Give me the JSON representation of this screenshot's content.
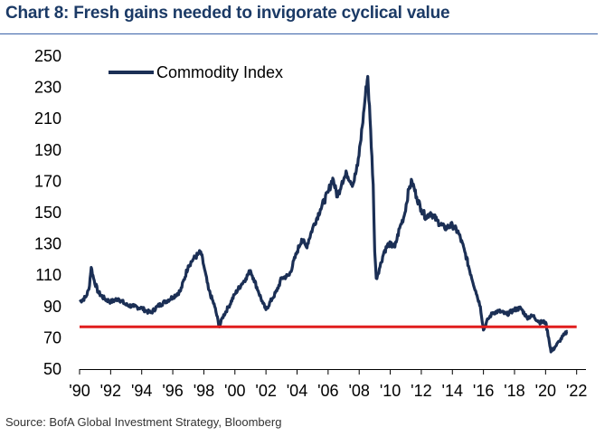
{
  "title": "Chart 8: Fresh gains needed to invigorate cyclical value",
  "source": "Source: BofA Global Investment Strategy, Bloomberg",
  "colors": {
    "title": "#1b3a66",
    "rule": "#3a63a8",
    "series": "#1b2f55",
    "reference": "#e01d1d"
  },
  "chart_data": {
    "type": "line",
    "title": "Chart 8: Fresh gains needed to invigorate cyclical value",
    "xlabel": "",
    "ylabel": "",
    "xlim": [
      1990,
      2022.6
    ],
    "ylim": [
      50,
      250
    ],
    "y_ticks": [
      50,
      70,
      90,
      110,
      130,
      150,
      170,
      190,
      210,
      230,
      250
    ],
    "x_tick_values": [
      1990,
      1992,
      1994,
      1996,
      1998,
      2000,
      2002,
      2004,
      2006,
      2008,
      2010,
      2012,
      2014,
      2016,
      2018,
      2020,
      2022
    ],
    "x_tick_labels": [
      "'90",
      "'92",
      "'94",
      "'96",
      "'98",
      "'00",
      "'02",
      "'04",
      "'06",
      "'08",
      "'10",
      "'12",
      "'14",
      "'16",
      "'18",
      "'20",
      "'22"
    ],
    "legend": [
      "Commodity Index"
    ],
    "legend_position": "top-left",
    "reference_line": {
      "y": 77,
      "xrange": [
        1990,
        2022
      ]
    },
    "series": [
      {
        "name": "Commodity Index",
        "points": [
          [
            1990.0,
            93
          ],
          [
            1990.4,
            96
          ],
          [
            1990.6,
            101
          ],
          [
            1990.75,
            115
          ],
          [
            1990.9,
            108
          ],
          [
            1991.2,
            99
          ],
          [
            1991.6,
            95
          ],
          [
            1992.0,
            93
          ],
          [
            1992.5,
            95
          ],
          [
            1993.0,
            91
          ],
          [
            1993.5,
            90
          ],
          [
            1994.0,
            89
          ],
          [
            1994.3,
            87
          ],
          [
            1994.6,
            86
          ],
          [
            1995.0,
            90
          ],
          [
            1995.5,
            93
          ],
          [
            1996.0,
            96
          ],
          [
            1996.5,
            100
          ],
          [
            1997.0,
            116
          ],
          [
            1997.3,
            120
          ],
          [
            1997.6,
            123
          ],
          [
            1997.8,
            125
          ],
          [
            1998.0,
            116
          ],
          [
            1998.3,
            101
          ],
          [
            1998.7,
            90
          ],
          [
            1999.0,
            77
          ],
          [
            1999.2,
            83
          ],
          [
            1999.6,
            90
          ],
          [
            2000.0,
            98
          ],
          [
            2000.4,
            104
          ],
          [
            2000.7,
            108
          ],
          [
            2001.0,
            113
          ],
          [
            2001.2,
            108
          ],
          [
            2001.5,
            100
          ],
          [
            2001.8,
            92
          ],
          [
            2002.0,
            88
          ],
          [
            2002.4,
            95
          ],
          [
            2002.7,
            100
          ],
          [
            2003.0,
            108
          ],
          [
            2003.5,
            110
          ],
          [
            2004.0,
            125
          ],
          [
            2004.3,
            133
          ],
          [
            2004.6,
            128
          ],
          [
            2005.0,
            140
          ],
          [
            2005.5,
            152
          ],
          [
            2006.0,
            163
          ],
          [
            2006.3,
            172
          ],
          [
            2006.6,
            160
          ],
          [
            2006.9,
            170
          ],
          [
            2007.2,
            175
          ],
          [
            2007.6,
            168
          ],
          [
            2007.9,
            180
          ],
          [
            2008.2,
            205
          ],
          [
            2008.4,
            225
          ],
          [
            2008.55,
            237
          ],
          [
            2008.7,
            210
          ],
          [
            2008.9,
            168
          ],
          [
            2009.0,
            125
          ],
          [
            2009.1,
            108
          ],
          [
            2009.3,
            114
          ],
          [
            2009.6,
            125
          ],
          [
            2009.9,
            130
          ],
          [
            2010.3,
            128
          ],
          [
            2010.6,
            140
          ],
          [
            2010.9,
            148
          ],
          [
            2011.2,
            165
          ],
          [
            2011.4,
            170
          ],
          [
            2011.7,
            160
          ],
          [
            2012.0,
            152
          ],
          [
            2012.3,
            147
          ],
          [
            2012.6,
            150
          ],
          [
            2013.0,
            145
          ],
          [
            2013.5,
            140
          ],
          [
            2014.0,
            142
          ],
          [
            2014.4,
            137
          ],
          [
            2014.8,
            125
          ],
          [
            2015.2,
            110
          ],
          [
            2015.5,
            100
          ],
          [
            2015.8,
            90
          ],
          [
            2016.0,
            75
          ],
          [
            2016.3,
            82
          ],
          [
            2016.6,
            86
          ],
          [
            2017.0,
            87
          ],
          [
            2017.5,
            85
          ],
          [
            2018.0,
            88
          ],
          [
            2018.4,
            89
          ],
          [
            2018.8,
            83
          ],
          [
            2019.2,
            84
          ],
          [
            2019.6,
            80
          ],
          [
            2020.0,
            80
          ],
          [
            2020.2,
            70
          ],
          [
            2020.35,
            61
          ],
          [
            2020.6,
            64
          ],
          [
            2020.9,
            68
          ],
          [
            2021.2,
            72
          ],
          [
            2021.4,
            74
          ]
        ]
      }
    ]
  }
}
